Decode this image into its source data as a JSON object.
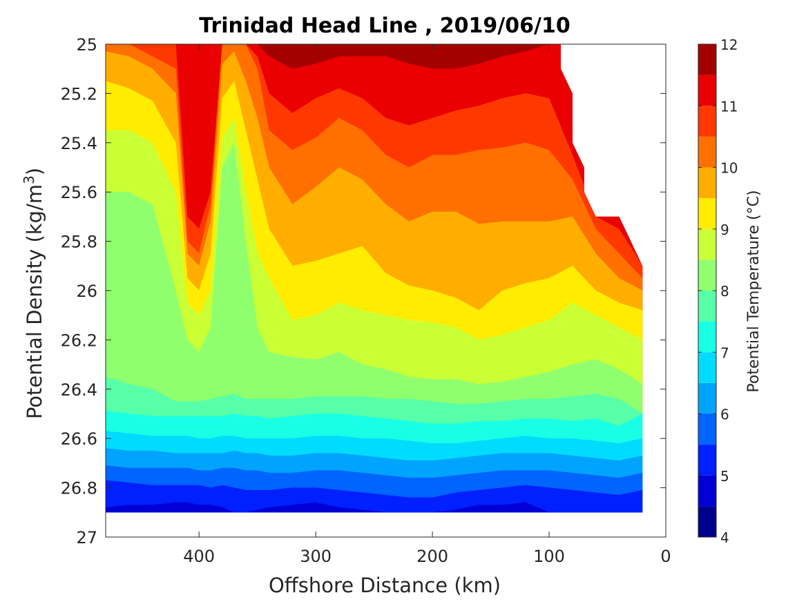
{
  "chart_data": {
    "type": "heatmap",
    "subtype": "filled-contour",
    "title": "Trinidad Head Line , 2019/06/10",
    "xlabel": "Offshore Distance (km)",
    "ylabel": "Potential Density (kg/m3)",
    "ylabel_main": "Potential Density (kg/m",
    "ylabel_sup": "3",
    "ylabel_close": ")",
    "xlim": [
      480,
      0
    ],
    "x_reversed": true,
    "ylim": [
      25,
      27
    ],
    "y_reversed": true,
    "xticks": [
      400,
      300,
      200,
      100,
      0
    ],
    "yticks": [
      25,
      25.2,
      25.4,
      25.6,
      25.8,
      26,
      26.2,
      26.4,
      26.6,
      26.8,
      27
    ],
    "colorbar": {
      "label": "Potential Temperature (°C)",
      "range": [
        4,
        12
      ],
      "ticks": [
        4,
        5,
        6,
        7,
        8,
        9,
        10,
        11,
        12
      ],
      "levels": [
        4,
        4.5,
        5,
        5.5,
        6,
        6.5,
        7,
        7.5,
        8,
        8.5,
        9,
        9.5,
        10,
        10.5,
        11,
        11.5,
        12
      ],
      "colors": [
        "#00008f",
        "#0000d6",
        "#0020ff",
        "#0064ff",
        "#00a4ff",
        "#00dcff",
        "#18ffe6",
        "#56ffa8",
        "#90ff6e",
        "#caff35",
        "#ffec00",
        "#ffae00",
        "#ff7000",
        "#ff3800",
        "#ea0000",
        "#a50000"
      ]
    },
    "data_extent": {
      "x_min": 20,
      "x_max": 480,
      "y_top": 25,
      "y_bottom": 26.9,
      "top_boundary": [
        [
          90,
          25
        ],
        [
          90,
          25.1
        ],
        [
          80,
          25.2
        ],
        [
          80,
          25.4
        ],
        [
          70,
          25.5
        ],
        [
          70,
          25.6
        ],
        [
          60,
          25.7
        ],
        [
          40,
          25.7
        ],
        [
          20,
          25.9
        ]
      ]
    },
    "profile_x": [
      480,
      460,
      440,
      420,
      410,
      400,
      390,
      380,
      370,
      360,
      350,
      340,
      320,
      300,
      280,
      260,
      240,
      220,
      200,
      180,
      160,
      140,
      120,
      100,
      80,
      60,
      40,
      20
    ],
    "isotherms": [
      {
        "t": 11.5,
        "y": [
          25.0,
          25.0,
          25.0,
          25.0,
          25.0,
          25.0,
          25.0,
          25.0,
          25.0,
          25.0,
          25.0,
          25.05,
          25.1,
          25.08,
          25.05,
          25.05,
          25.05,
          25.08,
          25.1,
          25.1,
          25.08,
          25.05,
          25.03,
          25.0,
          null,
          null,
          null,
          null
        ]
      },
      {
        "t": 11.0,
        "y": [
          25.0,
          25.0,
          25.0,
          25.0,
          25.7,
          25.75,
          25.6,
          25.0,
          25.0,
          25.0,
          25.05,
          25.2,
          25.28,
          25.22,
          25.18,
          25.22,
          25.3,
          25.33,
          25.3,
          25.27,
          25.25,
          25.22,
          25.2,
          25.22,
          25.45,
          25.7,
          25.75,
          25.9
        ]
      },
      {
        "t": 10.5,
        "y": [
          25.0,
          25.0,
          25.05,
          25.1,
          25.8,
          25.85,
          25.65,
          25.0,
          25.0,
          25.0,
          25.1,
          25.35,
          25.43,
          25.38,
          25.3,
          25.35,
          25.45,
          25.5,
          25.45,
          25.45,
          25.43,
          25.42,
          25.4,
          25.43,
          25.55,
          25.75,
          25.85,
          25.95
        ]
      },
      {
        "t": 10.0,
        "y": [
          25.03,
          25.05,
          25.1,
          25.2,
          25.85,
          25.9,
          25.72,
          25.08,
          25.03,
          25.15,
          25.3,
          25.5,
          25.65,
          25.58,
          25.5,
          25.55,
          25.65,
          25.72,
          25.68,
          25.68,
          25.73,
          25.72,
          25.72,
          25.72,
          25.7,
          25.85,
          25.95,
          26.0
        ]
      },
      {
        "t": 9.5,
        "y": [
          25.15,
          25.18,
          25.23,
          25.4,
          25.95,
          26.0,
          25.85,
          25.22,
          25.15,
          25.35,
          25.55,
          25.75,
          25.9,
          25.88,
          25.85,
          25.82,
          25.93,
          25.98,
          26.0,
          26.03,
          26.08,
          26.0,
          25.97,
          25.95,
          25.9,
          26.0,
          26.05,
          26.08
        ]
      },
      {
        "t": 9.0,
        "y": [
          25.35,
          25.35,
          25.4,
          25.6,
          26.05,
          26.1,
          26.0,
          25.38,
          25.3,
          25.6,
          25.85,
          25.95,
          26.12,
          26.1,
          26.05,
          26.08,
          26.1,
          26.12,
          26.13,
          26.15,
          26.2,
          26.18,
          26.15,
          26.12,
          26.05,
          26.1,
          26.15,
          26.2
        ]
      },
      {
        "t": 8.5,
        "y": [
          25.6,
          25.6,
          25.65,
          26.0,
          26.2,
          26.25,
          26.15,
          25.5,
          25.4,
          25.8,
          26.15,
          26.25,
          26.27,
          26.28,
          26.25,
          26.3,
          26.32,
          26.35,
          26.36,
          26.36,
          26.38,
          26.37,
          26.35,
          26.33,
          26.3,
          26.28,
          26.32,
          26.38
        ]
      },
      {
        "t": 8.0,
        "y": [
          26.35,
          26.38,
          26.4,
          26.45,
          26.45,
          26.45,
          26.44,
          26.43,
          26.42,
          26.44,
          26.44,
          26.44,
          26.44,
          26.43,
          26.43,
          26.43,
          26.44,
          26.44,
          26.45,
          26.46,
          26.46,
          26.45,
          26.44,
          26.44,
          26.43,
          26.42,
          26.44,
          26.5
        ]
      },
      {
        "t": 7.5,
        "y": [
          26.49,
          26.5,
          26.51,
          26.51,
          26.51,
          26.51,
          26.51,
          26.51,
          26.5,
          26.51,
          26.51,
          26.52,
          26.51,
          26.5,
          26.5,
          26.51,
          26.52,
          26.53,
          26.54,
          26.54,
          26.53,
          26.53,
          26.52,
          26.52,
          26.53,
          26.52,
          26.55,
          26.5
        ]
      },
      {
        "t": 7.0,
        "y": [
          26.57,
          26.58,
          26.59,
          26.59,
          26.59,
          26.6,
          26.6,
          26.59,
          26.59,
          26.6,
          26.6,
          26.6,
          26.6,
          26.59,
          26.59,
          26.6,
          26.6,
          26.61,
          26.62,
          26.62,
          26.61,
          26.6,
          26.59,
          26.6,
          26.6,
          26.61,
          26.62,
          26.6
        ]
      },
      {
        "t": 6.5,
        "y": [
          26.64,
          26.65,
          26.65,
          26.66,
          26.66,
          26.66,
          26.66,
          26.66,
          26.65,
          26.66,
          26.66,
          26.67,
          26.67,
          26.66,
          26.66,
          26.67,
          26.68,
          26.69,
          26.69,
          26.68,
          26.67,
          26.66,
          26.66,
          26.66,
          26.67,
          26.68,
          26.69,
          26.67
        ]
      },
      {
        "t": 6.0,
        "y": [
          26.71,
          26.72,
          26.72,
          26.72,
          26.72,
          26.73,
          26.73,
          26.72,
          26.72,
          26.73,
          26.73,
          26.74,
          26.74,
          26.73,
          26.73,
          26.74,
          26.75,
          26.76,
          26.76,
          26.75,
          26.74,
          26.73,
          26.73,
          26.73,
          26.74,
          26.75,
          26.76,
          26.74
        ]
      },
      {
        "t": 5.5,
        "y": [
          26.77,
          26.78,
          26.79,
          26.79,
          26.79,
          26.79,
          26.8,
          26.79,
          26.8,
          26.81,
          26.81,
          26.81,
          26.8,
          26.8,
          26.81,
          26.82,
          26.83,
          26.84,
          26.84,
          26.82,
          26.81,
          26.8,
          26.79,
          26.8,
          26.81,
          26.82,
          26.83,
          26.81
        ]
      },
      {
        "t": 5.0,
        "y": [
          26.88,
          26.87,
          26.87,
          26.86,
          26.86,
          26.87,
          26.87,
          26.88,
          26.9,
          26.9,
          26.89,
          26.88,
          26.87,
          26.86,
          26.88,
          26.89,
          26.9,
          26.9,
          26.9,
          26.89,
          26.87,
          26.87,
          26.86,
          26.9,
          26.9,
          26.9,
          26.9,
          26.9
        ]
      }
    ]
  }
}
